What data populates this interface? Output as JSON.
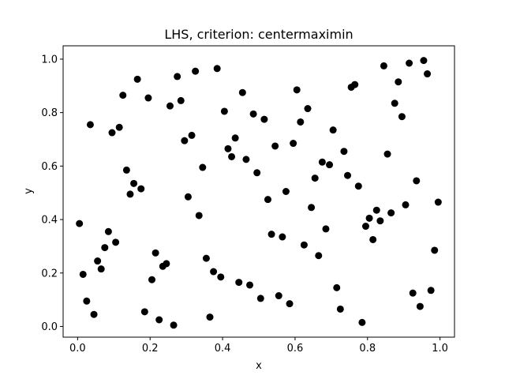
{
  "chart_data": {
    "type": "scatter",
    "title": "LHS, criterion: centermaximin",
    "xlabel": "x",
    "ylabel": "y",
    "xlim": [
      -0.04,
      1.04
    ],
    "ylim": [
      -0.04,
      1.05
    ],
    "xticks": [
      "0.0",
      "0.2",
      "0.4",
      "0.6",
      "0.8",
      "1.0"
    ],
    "yticks": [
      "0.0",
      "0.2",
      "0.4",
      "0.6",
      "0.8",
      "1.0"
    ],
    "grid": false,
    "marker_color": "#000000",
    "points": [
      [
        0.005,
        0.385
      ],
      [
        0.015,
        0.195
      ],
      [
        0.025,
        0.095
      ],
      [
        0.035,
        0.755
      ],
      [
        0.045,
        0.045
      ],
      [
        0.055,
        0.245
      ],
      [
        0.065,
        0.215
      ],
      [
        0.075,
        0.295
      ],
      [
        0.085,
        0.355
      ],
      [
        0.095,
        0.725
      ],
      [
        0.105,
        0.315
      ],
      [
        0.115,
        0.745
      ],
      [
        0.125,
        0.865
      ],
      [
        0.135,
        0.585
      ],
      [
        0.145,
        0.495
      ],
      [
        0.155,
        0.535
      ],
      [
        0.165,
        0.925
      ],
      [
        0.175,
        0.515
      ],
      [
        0.185,
        0.055
      ],
      [
        0.195,
        0.855
      ],
      [
        0.205,
        0.175
      ],
      [
        0.215,
        0.275
      ],
      [
        0.225,
        0.025
      ],
      [
        0.235,
        0.225
      ],
      [
        0.245,
        0.235
      ],
      [
        0.255,
        0.825
      ],
      [
        0.265,
        0.005
      ],
      [
        0.275,
        0.935
      ],
      [
        0.285,
        0.845
      ],
      [
        0.295,
        0.695
      ],
      [
        0.305,
        0.485
      ],
      [
        0.315,
        0.715
      ],
      [
        0.325,
        0.955
      ],
      [
        0.335,
        0.415
      ],
      [
        0.345,
        0.595
      ],
      [
        0.355,
        0.255
      ],
      [
        0.365,
        0.035
      ],
      [
        0.375,
        0.205
      ],
      [
        0.385,
        0.965
      ],
      [
        0.395,
        0.185
      ],
      [
        0.405,
        0.805
      ],
      [
        0.415,
        0.665
      ],
      [
        0.425,
        0.635
      ],
      [
        0.435,
        0.705
      ],
      [
        0.445,
        0.165
      ],
      [
        0.455,
        0.875
      ],
      [
        0.465,
        0.625
      ],
      [
        0.475,
        0.155
      ],
      [
        0.485,
        0.795
      ],
      [
        0.495,
        0.575
      ],
      [
        0.505,
        0.105
      ],
      [
        0.515,
        0.775
      ],
      [
        0.525,
        0.475
      ],
      [
        0.535,
        0.345
      ],
      [
        0.545,
        0.675
      ],
      [
        0.555,
        0.115
      ],
      [
        0.565,
        0.335
      ],
      [
        0.575,
        0.505
      ],
      [
        0.585,
        0.085
      ],
      [
        0.595,
        0.685
      ],
      [
        0.605,
        0.885
      ],
      [
        0.615,
        0.765
      ],
      [
        0.625,
        0.305
      ],
      [
        0.635,
        0.815
      ],
      [
        0.645,
        0.445
      ],
      [
        0.655,
        0.555
      ],
      [
        0.665,
        0.265
      ],
      [
        0.675,
        0.615
      ],
      [
        0.685,
        0.365
      ],
      [
        0.695,
        0.605
      ],
      [
        0.705,
        0.735
      ],
      [
        0.715,
        0.145
      ],
      [
        0.725,
        0.065
      ],
      [
        0.735,
        0.655
      ],
      [
        0.745,
        0.565
      ],
      [
        0.755,
        0.895
      ],
      [
        0.765,
        0.905
      ],
      [
        0.775,
        0.525
      ],
      [
        0.785,
        0.015
      ],
      [
        0.795,
        0.375
      ],
      [
        0.805,
        0.405
      ],
      [
        0.815,
        0.325
      ],
      [
        0.825,
        0.435
      ],
      [
        0.835,
        0.395
      ],
      [
        0.845,
        0.975
      ],
      [
        0.855,
        0.645
      ],
      [
        0.865,
        0.425
      ],
      [
        0.875,
        0.835
      ],
      [
        0.885,
        0.915
      ],
      [
        0.895,
        0.785
      ],
      [
        0.905,
        0.455
      ],
      [
        0.915,
        0.985
      ],
      [
        0.925,
        0.125
      ],
      [
        0.935,
        0.545
      ],
      [
        0.945,
        0.075
      ],
      [
        0.955,
        0.995
      ],
      [
        0.965,
        0.945
      ],
      [
        0.975,
        0.135
      ],
      [
        0.985,
        0.285
      ],
      [
        0.995,
        0.465
      ]
    ]
  }
}
